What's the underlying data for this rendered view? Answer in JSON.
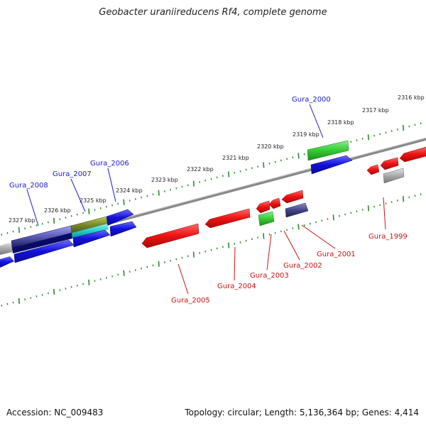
{
  "header": {
    "title": "Geobacter uraniireducens Rf4, complete genome"
  },
  "footer": {
    "accession": "Accession: NC_009483",
    "summary": "Topology: circular; Length: 5,136,364 bp; Genes: 4,414"
  },
  "scale_labels": [
    "2316 kbp",
    "2317 kbp",
    "2318 kbp",
    "2319 kbp",
    "2320 kbp",
    "2321 kbp",
    "2322 kbp",
    "2323 kbp",
    "2324 kbp",
    "2325 kbp",
    "2326 kbp",
    "2327 kbp"
  ],
  "gene_labels_top": [
    "Gura_2000",
    "Gura_2006",
    "Gura_2007",
    "Gura_2008"
  ],
  "gene_labels_bottom": [
    "Gura_1999",
    "Gura_2001",
    "Gura_2002",
    "Gura_2003",
    "Gura_2004",
    "Gura_2005"
  ],
  "colors": {
    "forward_label": "#1a1acc",
    "reverse_label": "#cc1111",
    "tick": "#2a8a2a",
    "backbone": "#888888",
    "blue_gene": "#1010dd",
    "red_gene": "#ee1111",
    "green_gene": "#33cc33",
    "slate_gene": "#444488",
    "gray_gene": "#aaaaaa"
  }
}
